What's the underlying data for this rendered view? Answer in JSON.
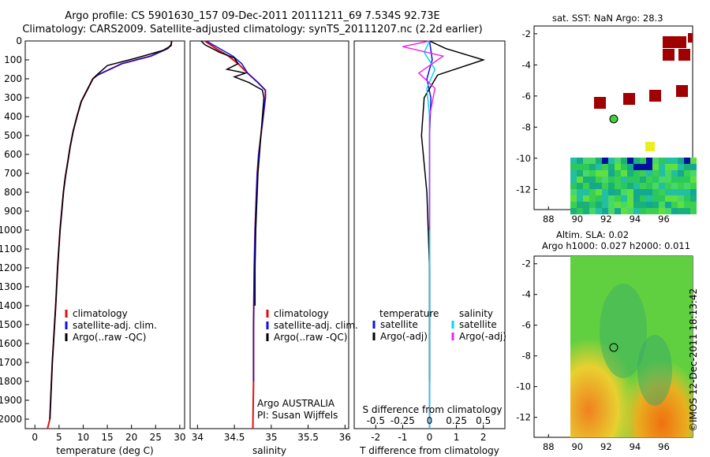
{
  "header": {
    "line1": "Argo profile: CS 5901630_157 09-Dec-2011 20111211_69 7.534S 92.73E",
    "line2": "Climatology: CARS2009. Satellite-adjusted climatology: synTS_20111207.nc (2.2d earlier)"
  },
  "depth_ticks": [
    "0",
    "100",
    "200",
    "300",
    "400",
    "500",
    "600",
    "700",
    "800",
    "900",
    "1000",
    "1100",
    "1200",
    "1300",
    "1400",
    "1500",
    "1600",
    "1700",
    "1800",
    "1900",
    "2000"
  ],
  "colors": {
    "climatology": "#e01010",
    "satellite": "#1010e0",
    "argo": "#000000",
    "sat_cyan": "#00d8f0",
    "argo_adj_magenta": "#f020f0",
    "map_red": "#a00000"
  },
  "panels": {
    "temperature": {
      "xlabel": "temperature (deg C)",
      "xticks": [
        "0",
        "5",
        "10",
        "15",
        "20",
        "25",
        "30"
      ],
      "legend": [
        "climatology",
        "satellite-adj. clim.",
        "Argo(..raw -QC)"
      ]
    },
    "salinity": {
      "xlabel": "salinity",
      "xticks": [
        "34",
        "34.5",
        "35",
        "35.5",
        "36"
      ],
      "legend": [
        "climatology",
        "satellite-adj. clim.",
        "Argo(..raw -QC)"
      ],
      "note1": "Argo AUSTRALIA",
      "note2": "PI: Susan Wijffels"
    },
    "difference": {
      "xlabel": "T difference from climatology",
      "top_label": "S difference from climatology",
      "xticks": [
        "-2",
        "-1",
        "0",
        "1",
        "2"
      ],
      "sticks": [
        "-0.5",
        "-0.25",
        "0",
        "0.25",
        "0.5"
      ],
      "legend_temp_title": "temperature",
      "legend_sal_title": "salinity",
      "legend_temp": [
        "satellite",
        "Argo(-adj)"
      ],
      "legend_sal": [
        "satellite",
        "Argo(-adj)"
      ]
    }
  },
  "maps": {
    "sst_title": "sat. SST: NaN Argo: 28.3",
    "sla_title1": "Altim. SLA: 0.02",
    "sla_title2": "Argo h1000: 0.027 h2000: 0.011",
    "yticks": [
      "-2",
      "-4",
      "-6",
      "-8",
      "-10",
      "-12"
    ],
    "xticks": [
      "88",
      "90",
      "92",
      "94",
      "96"
    ]
  },
  "footer": {
    "copyright": "©IMOS 12-Dec-2011 18:13:42"
  },
  "chart_data": [
    {
      "type": "line",
      "title": "",
      "xlabel": "temperature (deg C)",
      "ylabel": "",
      "xlim": [
        -2,
        31
      ],
      "ylim": [
        2050,
        0
      ],
      "series": [
        {
          "name": "climatology",
          "x": [
            28.3,
            28.2,
            27.5,
            24,
            18,
            13,
            12,
            10.8,
            9.6,
            8.7,
            7.9,
            7.3,
            6.8,
            6.3,
            5.9,
            5.2,
            4.7,
            4.3,
            3.6,
            3.1,
            2.6
          ],
          "y": [
            0,
            20,
            40,
            80,
            120,
            180,
            200,
            260,
            320,
            400,
            480,
            560,
            640,
            720,
            800,
            1000,
            1200,
            1400,
            1700,
            2000,
            2050
          ]
        },
        {
          "name": "satellite-adj. clim.",
          "x": [
            28.3,
            28.2,
            27.5,
            24,
            18,
            13,
            12,
            10.8,
            9.6,
            8.7,
            7.9,
            7.3,
            6.8,
            6.3,
            5.9,
            5.2,
            4.7,
            4.3,
            3.6,
            3.1
          ],
          "y": [
            0,
            20,
            40,
            80,
            120,
            180,
            200,
            260,
            320,
            400,
            480,
            560,
            640,
            720,
            800,
            1000,
            1200,
            1400,
            1700,
            2000
          ]
        },
        {
          "name": "Argo(..raw -QC)",
          "x": [
            28.3,
            28.2,
            26.5,
            21,
            15,
            12.8,
            12,
            10.8,
            9.6,
            8.7,
            7.9,
            7.3,
            6.8,
            6.3,
            5.9,
            5.2,
            4.7,
            4.3,
            3.6,
            3.1
          ],
          "y": [
            0,
            25,
            50,
            90,
            130,
            180,
            200,
            260,
            320,
            400,
            480,
            560,
            640,
            720,
            800,
            1000,
            1200,
            1400,
            1700,
            2000
          ]
        }
      ]
    },
    {
      "type": "line",
      "title": "",
      "xlabel": "salinity",
      "ylabel": "",
      "xlim": [
        33.9,
        36.05
      ],
      "ylim": [
        2050,
        0
      ],
      "series": [
        {
          "name": "climatology",
          "x": [
            34.1,
            34.25,
            34.42,
            34.55,
            34.68,
            34.82,
            34.92,
            34.92,
            34.89,
            34.86,
            34.83,
            34.81,
            34.8,
            34.79,
            34.78,
            34.77,
            34.76,
            34.76,
            34.75
          ],
          "y": [
            0,
            40,
            80,
            120,
            170,
            220,
            260,
            300,
            400,
            500,
            600,
            700,
            800,
            900,
            1000,
            1200,
            1500,
            1800,
            2050
          ]
        },
        {
          "name": "satellite-adj. clim.",
          "x": [
            34.12,
            34.3,
            34.48,
            34.6,
            34.68,
            34.82,
            34.92,
            34.92,
            34.89,
            34.86,
            34.83,
            34.81,
            34.8,
            34.79,
            34.78,
            34.77,
            34.76,
            34.76
          ],
          "y": [
            0,
            40,
            80,
            120,
            170,
            220,
            260,
            300,
            400,
            500,
            600,
            700,
            800,
            900,
            1000,
            1200,
            1500,
            1800
          ]
        },
        {
          "name": "Argo(..raw -QC)",
          "x": [
            34.05,
            34.1,
            34.3,
            34.5,
            34.55,
            34.4,
            34.65,
            34.5,
            34.7,
            34.88,
            34.9,
            34.88,
            34.86,
            34.84,
            34.82,
            34.81,
            34.8,
            34.79,
            34.78,
            34.78
          ],
          "y": [
            0,
            20,
            60,
            90,
            120,
            150,
            170,
            190,
            220,
            260,
            300,
            400,
            500,
            600,
            700,
            800,
            900,
            1000,
            1200,
            1400
          ]
        }
      ]
    },
    {
      "type": "line",
      "title": "",
      "xlabel": "T difference from climatology",
      "ylabel": "",
      "xlim": [
        -2.8,
        2.8
      ],
      "ylim": [
        2050,
        0
      ],
      "series": [
        {
          "name": "temperature satellite",
          "x": [
            0,
            0.1,
            -0.1,
            0.05,
            0,
            0,
            0,
            0,
            0,
            0
          ],
          "y": [
            0,
            100,
            200,
            300,
            500,
            800,
            1200,
            1500,
            1800,
            2050
          ]
        },
        {
          "name": "temperature Argo(-adj)",
          "x": [
            0,
            0.6,
            2.0,
            0.3,
            -0.2,
            -0.3,
            -0.1,
            0,
            0,
            0
          ],
          "y": [
            0,
            40,
            100,
            180,
            300,
            500,
            800,
            1200,
            1500,
            1800
          ]
        },
        {
          "name": "salinity satellite",
          "x": [
            0,
            -0.2,
            0.2,
            -0.1,
            0,
            0,
            0,
            0
          ],
          "y": [
            0,
            60,
            150,
            250,
            400,
            800,
            1400,
            2050
          ]
        },
        {
          "name": "salinity Argo(-adj)",
          "x": [
            0,
            -1.0,
            0.5,
            -0.4,
            0.2,
            0,
            0,
            0
          ],
          "y": [
            0,
            30,
            80,
            170,
            250,
            400,
            700,
            1000
          ]
        }
      ]
    }
  ]
}
